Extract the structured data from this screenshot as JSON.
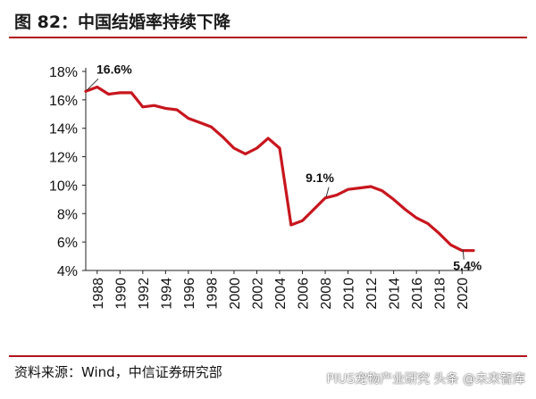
{
  "figure": {
    "title": "图 82：中国结婚率持续下降",
    "source": "资料来源：Wind，中信证券研究部",
    "watermark": "PIUS宠物产业研究 头条 @未来智库",
    "accent_color": "#b1141b"
  },
  "chart_data": {
    "type": "line",
    "title": "",
    "xlabel": "",
    "ylabel": "",
    "ylim": [
      4,
      18
    ],
    "yticks": [
      "4%",
      "6%",
      "8%",
      "10%",
      "12%",
      "14%",
      "16%",
      "18%"
    ],
    "xticks": [
      "1988",
      "1990",
      "1992",
      "1994",
      "1996",
      "1998",
      "2000",
      "2002",
      "2004",
      "2006",
      "2008",
      "2010",
      "2012",
      "2014",
      "2016",
      "2018",
      "2020"
    ],
    "grid": false,
    "series": [
      {
        "color": "#c8161e",
        "x": [
          1987,
          1988,
          1989,
          1990,
          1991,
          1992,
          1993,
          1994,
          1995,
          1996,
          1997,
          1998,
          1999,
          2000,
          2001,
          2002,
          2003,
          2004,
          2005,
          2006,
          2007,
          2008,
          2009,
          2010,
          2011,
          2012,
          2013,
          2014,
          2015,
          2016,
          2017,
          2018,
          2019,
          2020,
          2021
        ],
        "values": [
          16.6,
          16.9,
          16.4,
          16.5,
          16.5,
          15.5,
          15.6,
          15.4,
          15.3,
          14.7,
          14.4,
          14.1,
          13.4,
          12.6,
          12.2,
          12.6,
          13.3,
          12.6,
          7.2,
          7.5,
          8.3,
          9.1,
          9.3,
          9.7,
          9.8,
          9.9,
          9.6,
          9.0,
          8.3,
          7.7,
          7.3,
          6.6,
          5.8,
          5.4,
          5.4
        ]
      }
    ],
    "annotations": [
      {
        "text": "16.6%",
        "x": 1987,
        "y": 16.6
      },
      {
        "text": "9.1%",
        "x": 2008,
        "y": 9.1
      },
      {
        "text": "5.4%",
        "x": 2020,
        "y": 5.4
      }
    ]
  }
}
